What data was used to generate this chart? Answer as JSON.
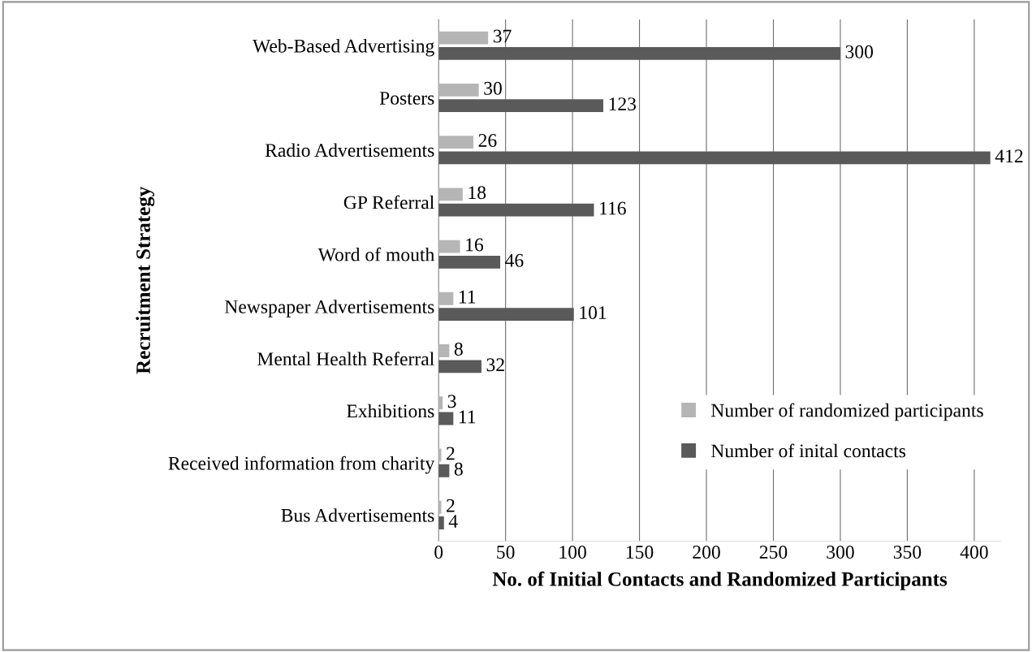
{
  "chart_data": {
    "type": "bar",
    "orientation": "horizontal",
    "ylabel": "Recruitment Strategy",
    "xlabel": "No. of Initial Contacts and Randomized Participants",
    "categories": [
      "Web-Based Advertising",
      "Posters",
      "Radio Advertisements",
      "GP Referral",
      "Word of mouth",
      "Newspaper Advertisements",
      "Mental Health Referral",
      "Exhibitions",
      "Received information from charity",
      "Bus Advertisements"
    ],
    "series": [
      {
        "name": "Number of randomized participants",
        "color": "#b5b5b5",
        "values": [
          37,
          30,
          26,
          18,
          16,
          11,
          8,
          3,
          2,
          2
        ]
      },
      {
        "name": "Number of inital contacts",
        "color": "#5a5a5a",
        "values": [
          300,
          123,
          412,
          116,
          46,
          101,
          32,
          11,
          8,
          4
        ]
      }
    ],
    "xlim": [
      0,
      420
    ],
    "xticks": [
      0,
      50,
      100,
      150,
      200,
      250,
      300,
      350,
      400
    ],
    "grid": "x",
    "legend": "bottom right",
    "data_labels": true
  }
}
